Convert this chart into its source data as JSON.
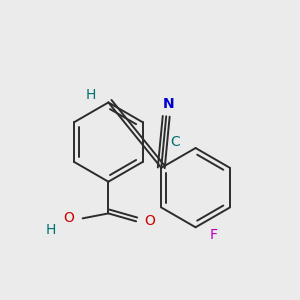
{
  "background_color": "#ebebeb",
  "bond_color": "#2c2c2c",
  "bond_width": 1.4,
  "label_N": {
    "text": "N",
    "color": "#0000cc",
    "fontsize": 10
  },
  "label_C_cyan": {
    "text": "C",
    "color": "#007070",
    "fontsize": 10
  },
  "label_H_vinyl": {
    "text": "H",
    "color": "#007070",
    "fontsize": 10
  },
  "label_F": {
    "text": "F",
    "color": "#bb00bb",
    "fontsize": 10
  },
  "label_O": {
    "text": "O",
    "color": "#cc0000",
    "fontsize": 10
  },
  "label_H_acid": {
    "text": "H",
    "color": "#007070",
    "fontsize": 10
  },
  "figsize": [
    3.0,
    3.0
  ],
  "dpi": 100
}
